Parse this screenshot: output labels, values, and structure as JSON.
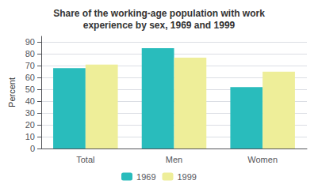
{
  "chart_data": {
    "type": "bar",
    "title": "Share of the working-age population with work\nexperience by sex, 1969 and 1999",
    "categories": [
      "Total",
      "Men",
      "Women"
    ],
    "series": [
      {
        "name": "1969",
        "color": "#29BCBC",
        "values": [
          68,
          85,
          52
        ]
      },
      {
        "name": "1999",
        "color": "#EEEE99",
        "values": [
          71,
          77,
          65
        ]
      }
    ],
    "ylabel": "Percent",
    "ylim": [
      0,
      95
    ],
    "yticks": [
      0,
      10,
      20,
      30,
      40,
      50,
      60,
      70,
      80,
      90
    ],
    "grid": true,
    "legend": "bottom"
  }
}
